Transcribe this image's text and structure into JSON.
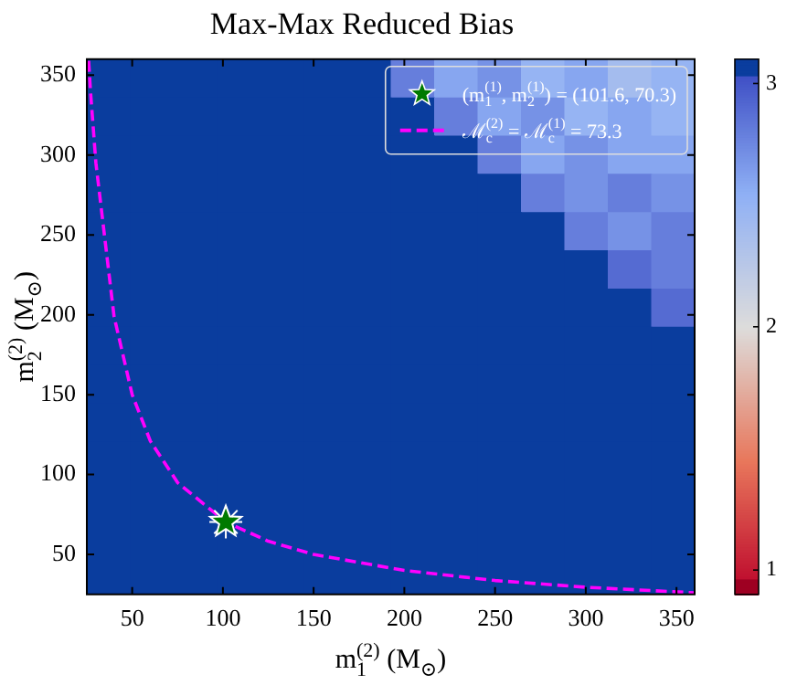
{
  "chart_data": {
    "type": "heatmap",
    "title": "Max-Max Reduced Bias",
    "xlabel": "m$_{1}$$^{(2)}$ (M$_{⊙}$)",
    "ylabel": "m$_{2}$$^{(2)}$ (M$_{⊙}$)",
    "xlim": [
      25,
      360
    ],
    "ylim": [
      25,
      360
    ],
    "xticks": [
      50,
      100,
      150,
      200,
      250,
      300,
      350
    ],
    "yticks": [
      50,
      100,
      150,
      200,
      250,
      300,
      350
    ],
    "clim": [
      0.9,
      3.1
    ],
    "cticks": [
      1,
      2,
      3
    ],
    "cells": [
      [
        3.05,
        3.05,
        3.05,
        3.05,
        3.05,
        3.05,
        3.05,
        2.8,
        2.6,
        2.7,
        2.5,
        2.6,
        2.4,
        2.5
      ],
      [
        3.05,
        3.05,
        3.05,
        3.05,
        3.05,
        3.05,
        3.05,
        3.05,
        2.8,
        2.6,
        2.7,
        2.5,
        2.6,
        2.5
      ],
      [
        3.05,
        3.05,
        3.05,
        3.05,
        3.05,
        3.05,
        3.05,
        3.05,
        3.05,
        2.8,
        2.6,
        2.7,
        2.6,
        2.6
      ],
      [
        3.05,
        3.05,
        3.05,
        3.05,
        3.05,
        3.05,
        3.05,
        3.05,
        3.05,
        3.05,
        2.8,
        2.7,
        2.8,
        2.7
      ],
      [
        3.05,
        3.05,
        3.05,
        3.05,
        3.05,
        3.05,
        3.05,
        3.05,
        3.05,
        3.05,
        3.05,
        2.8,
        2.7,
        2.8
      ],
      [
        3.05,
        3.05,
        3.05,
        3.05,
        3.05,
        3.05,
        3.05,
        3.05,
        3.05,
        3.05,
        3.05,
        3.05,
        2.9,
        2.8
      ],
      [
        3.05,
        3.05,
        3.05,
        3.05,
        3.05,
        3.05,
        3.05,
        3.05,
        3.05,
        3.05,
        3.05,
        3.05,
        3.05,
        2.9
      ],
      [
        3.05,
        3.05,
        3.05,
        3.05,
        3.05,
        3.05,
        3.05,
        3.05,
        3.05,
        3.05,
        3.05,
        3.05,
        3.05,
        3.05
      ],
      [
        3.05,
        3.05,
        3.05,
        3.05,
        3.05,
        3.05,
        3.05,
        3.05,
        3.05,
        3.05,
        3.05,
        3.05,
        3.05,
        3.05
      ],
      [
        3.05,
        3.05,
        3.05,
        3.05,
        3.05,
        3.05,
        3.05,
        3.05,
        3.05,
        3.05,
        3.05,
        3.05,
        3.05,
        3.05
      ],
      [
        3.05,
        3.05,
        3.05,
        3.05,
        3.05,
        3.05,
        3.05,
        3.05,
        3.05,
        3.05,
        3.05,
        3.05,
        3.05,
        3.05
      ],
      [
        3.05,
        3.05,
        3.05,
        3.05,
        3.05,
        3.05,
        3.05,
        3.05,
        3.05,
        3.05,
        3.05,
        3.05,
        3.05,
        3.05
      ],
      [
        3.05,
        3.05,
        3.05,
        3.05,
        3.05,
        3.05,
        3.05,
        3.05,
        3.05,
        3.05,
        3.05,
        3.05,
        3.05,
        3.05
      ],
      [
        3.05,
        3.05,
        3.05,
        3.05,
        3.05,
        3.05,
        3.05,
        3.05,
        3.05,
        3.05,
        3.05,
        3.05,
        3.05,
        3.05
      ]
    ],
    "legend": "top right",
    "series": [
      {
        "type": "scatter",
        "name": "(m$_{1}$$^{(1)}$, m$_{2}$$^{(1)}$) = (101.6, 70.3)",
        "color": "#007a00",
        "marker": "star",
        "x": [
          101.6
        ],
        "values": [
          70.3
        ]
      },
      {
        "type": "line",
        "name": "ℳ$_{c}$$^{(2)}$ = ℳ$_{c}$$^{(1)}$ = 73.3",
        "color": "#ff00ff",
        "line_style": "dashed",
        "marker": "none",
        "x": [
          26,
          27,
          30,
          40,
          50,
          60,
          75,
          101.6,
          125,
          150,
          200,
          250,
          300,
          360
        ],
        "values": [
          359,
          340,
          295,
          199,
          150,
          121,
          95,
          70.3,
          58.3,
          50,
          40,
          33.7,
          29.5,
          26
        ]
      }
    ]
  }
}
